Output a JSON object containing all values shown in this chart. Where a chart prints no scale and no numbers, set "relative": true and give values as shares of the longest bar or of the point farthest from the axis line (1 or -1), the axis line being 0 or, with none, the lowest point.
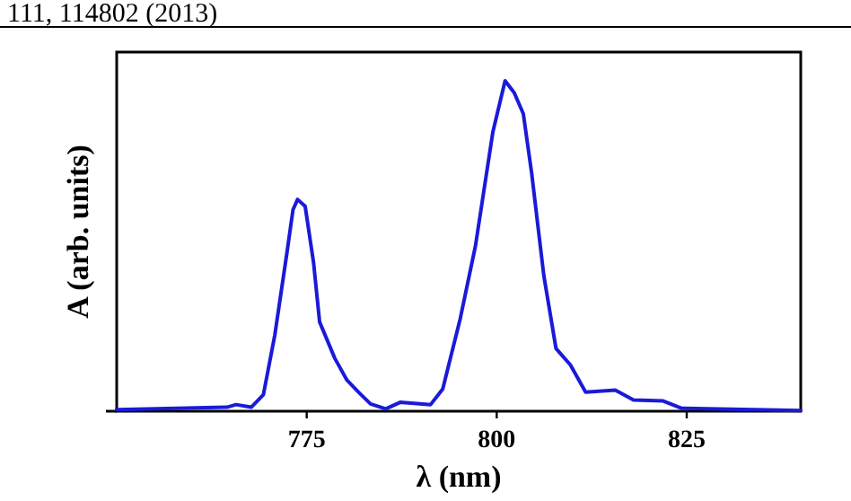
{
  "chart_data": {
    "type": "line",
    "relative": true,
    "xlabel": "λ (nm)",
    "ylabel": "A (arb. units)",
    "xlim": [
      750,
      840
    ],
    "xticks": [
      775,
      800,
      825
    ],
    "tick_labels": "x",
    "grid": false,
    "marker": "none",
    "line_style": "solid",
    "annotations": [
      "111, 114802 (2013)"
    ],
    "series": [
      {
        "color": "#1a1ad8",
        "x": [
          750,
          764.5,
          765.7,
          767.7,
          769.3,
          770.8,
          772.4,
          773.2,
          773.8,
          774.8,
          775.9,
          776.7,
          778.7,
          780.3,
          781.8,
          783.4,
          785.4,
          787.3,
          791.3,
          792.9,
          795.2,
          797.2,
          799.5,
          801.1,
          802.3,
          803.5,
          804.6,
          806.2,
          807.8,
          809.7,
          811.7,
          815.6,
          818,
          821.9,
          824.3,
          840
        ],
        "values": [
          0.005,
          0.012,
          0.02,
          0.012,
          0.05,
          0.23,
          0.48,
          0.61,
          0.641,
          0.62,
          0.45,
          0.27,
          0.16,
          0.094,
          0.058,
          0.022,
          0.007,
          0.027,
          0.02,
          0.067,
          0.28,
          0.5,
          0.846,
          1,
          0.964,
          0.9,
          0.72,
          0.41,
          0.19,
          0.14,
          0.058,
          0.064,
          0.034,
          0.031,
          0.009,
          0.002
        ]
      }
    ]
  }
}
